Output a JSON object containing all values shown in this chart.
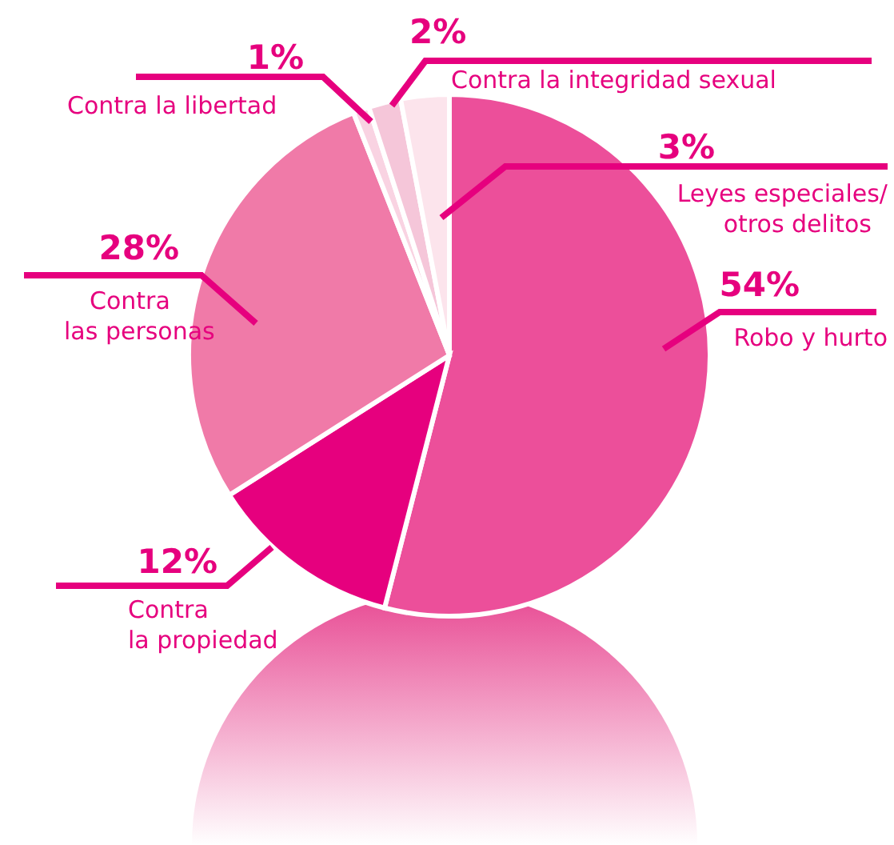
{
  "chart_data": {
    "type": "pie",
    "categories": [
      "Robo y hurto",
      "Contra la propiedad",
      "Contra las personas",
      "Contra la libertad",
      "Contra la integridad sexual",
      "Leyes especiales/ otros delitos"
    ],
    "values": [
      54,
      12,
      28,
      1,
      2,
      3
    ],
    "value_labels": [
      "54%",
      "12%",
      "28%",
      "1%",
      "2%",
      "3%"
    ],
    "colors": [
      "#ec4f9a",
      "#e6007e",
      "#f07aa8",
      "#f9d3e2",
      "#f5c6d9",
      "#fce4ec"
    ]
  }
}
